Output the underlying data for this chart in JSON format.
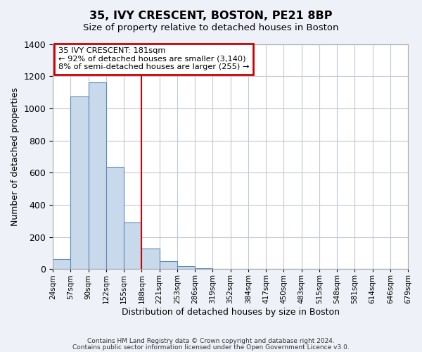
{
  "title": "35, IVY CRESCENT, BOSTON, PE21 8BP",
  "subtitle": "Size of property relative to detached houses in Boston",
  "xlabel": "Distribution of detached houses by size in Boston",
  "ylabel": "Number of detached properties",
  "bin_labels": [
    "24sqm",
    "57sqm",
    "90sqm",
    "122sqm",
    "155sqm",
    "188sqm",
    "221sqm",
    "253sqm",
    "286sqm",
    "319sqm",
    "352sqm",
    "384sqm",
    "417sqm",
    "450sqm",
    "483sqm",
    "515sqm",
    "548sqm",
    "581sqm",
    "614sqm",
    "646sqm",
    "679sqm"
  ],
  "bar_heights": [
    65,
    1075,
    1160,
    638,
    290,
    130,
    48,
    20,
    8,
    0,
    0,
    0,
    0,
    0,
    0,
    0,
    0,
    0,
    0,
    0
  ],
  "bar_color": "#c9d9ec",
  "bar_edge_color": "#5a8ab8",
  "vline_x": 5.0,
  "vline_color": "#cc0000",
  "ylim": [
    0,
    1400
  ],
  "yticks": [
    0,
    200,
    400,
    600,
    800,
    1000,
    1200,
    1400
  ],
  "annotation_title": "35 IVY CRESCENT: 181sqm",
  "annotation_line1": "← 92% of detached houses are smaller (3,140)",
  "annotation_line2": "8% of semi-detached houses are larger (255) →",
  "annotation_box_color": "#cc0000",
  "footnote1": "Contains HM Land Registry data © Crown copyright and database right 2024.",
  "footnote2": "Contains public sector information licensed under the Open Government Licence v3.0.",
  "bg_color": "#eef2f8",
  "plot_bg_color": "#ffffff",
  "grid_color": "#c0c8d8"
}
